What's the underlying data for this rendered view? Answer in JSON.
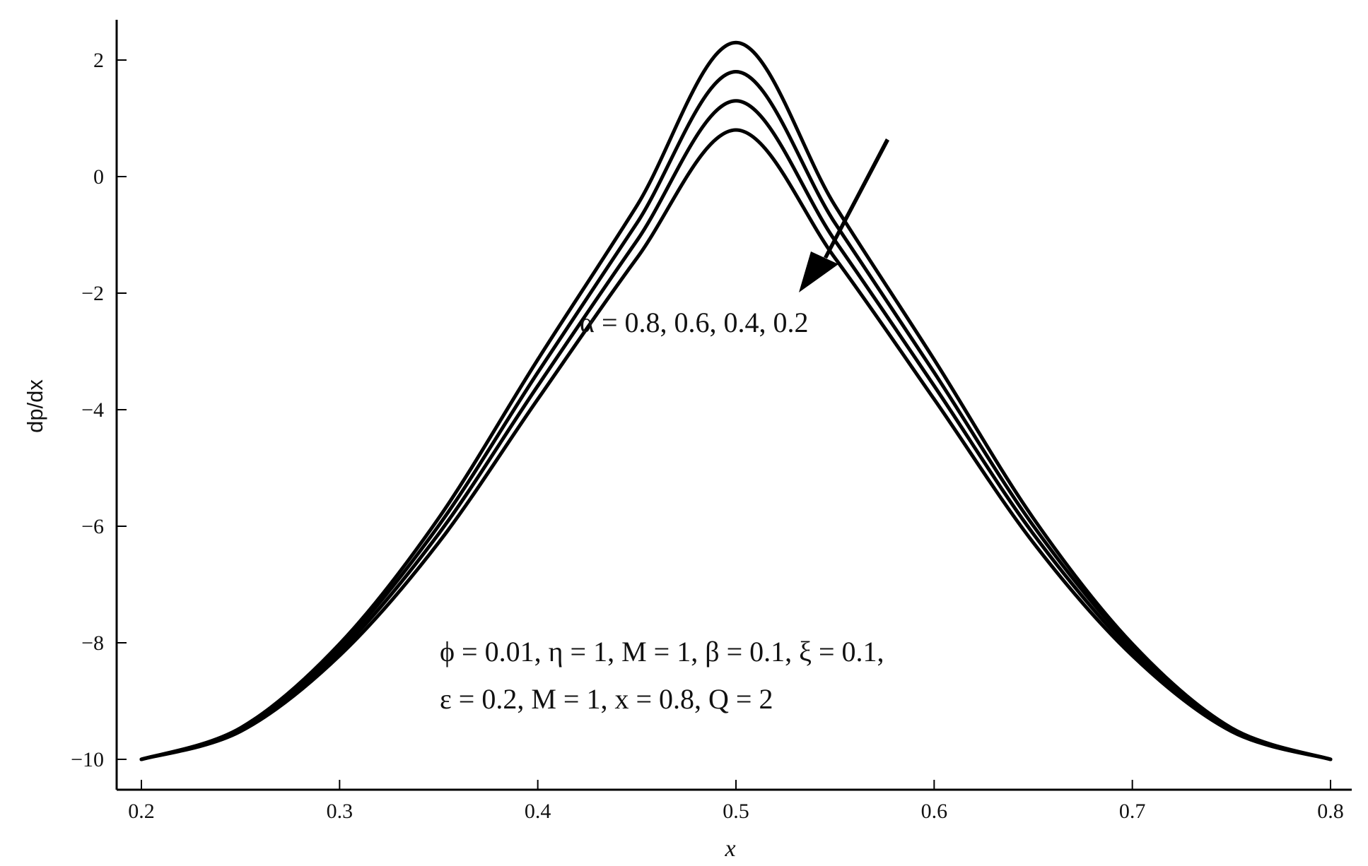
{
  "chart_data": {
    "type": "line",
    "xlabel": "x",
    "ylabel": "dp/dx",
    "xlim": [
      0.2,
      0.8
    ],
    "ylim": [
      -10,
      2
    ],
    "x_ticks": [
      0.2,
      0.3,
      0.4,
      0.5,
      0.6,
      0.7,
      0.8
    ],
    "x_tick_labels": [
      "0.2",
      "0.3",
      "0.4",
      "0.5",
      "0.6",
      "0.7",
      "0.8"
    ],
    "y_ticks": [
      -10,
      -8,
      -6,
      -4,
      -2,
      0,
      2
    ],
    "y_tick_labels": [
      "−10",
      "−8",
      "−6",
      "−4",
      "−2",
      "0",
      "2"
    ],
    "grid": false,
    "x": [
      0.2,
      0.25,
      0.3,
      0.35,
      0.4,
      0.45,
      0.5,
      0.55,
      0.6,
      0.65,
      0.7,
      0.75,
      0.8
    ],
    "series": [
      {
        "values": [
          -10.0,
          -9.46,
          -8.02,
          -5.86,
          -3.14,
          -0.5,
          2.3,
          -0.5,
          -3.14,
          -5.86,
          -8.02,
          -9.46,
          -10.0
        ]
      },
      {
        "values": [
          -10.0,
          -9.48,
          -8.08,
          -5.99,
          -3.36,
          -0.8,
          1.8,
          -0.8,
          -3.36,
          -5.99,
          -8.08,
          -9.48,
          -10.0
        ]
      },
      {
        "values": [
          -10.0,
          -9.5,
          -8.15,
          -6.13,
          -3.59,
          -1.1,
          1.3,
          -1.1,
          -3.59,
          -6.13,
          -8.15,
          -9.5,
          -10.0
        ]
      },
      {
        "values": [
          -10.0,
          -9.52,
          -8.22,
          -6.28,
          -3.82,
          -1.4,
          0.8,
          -1.4,
          -3.82,
          -6.28,
          -8.22,
          -9.52,
          -10.0
        ]
      }
    ],
    "annotations": {
      "alpha": "α = 0.8, 0.6, 0.4, 0.2",
      "params_line1": "ϕ  = 0.01, η = 1, M = 1, β = 0.1, ξ = 0.1,",
      "params_line2": "ε = 0.2, M = 1, x = 0.8, Q = 2"
    },
    "line_color": "#000000"
  }
}
